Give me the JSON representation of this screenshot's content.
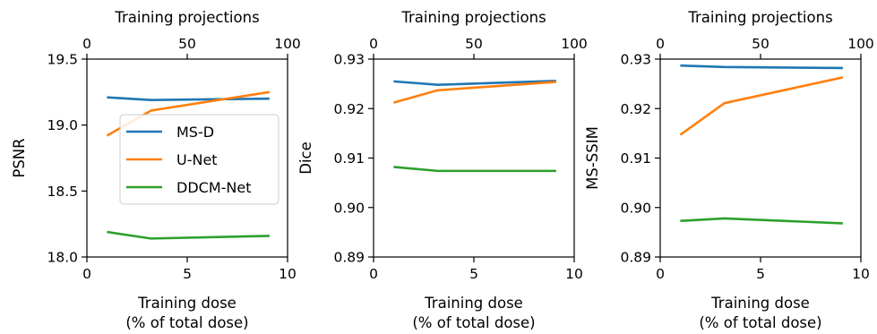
{
  "chart_data": [
    {
      "type": "line",
      "xlabel": "Training dose",
      "xlabel2": "(% of total dose)",
      "top_xlabel": "Training projections",
      "ylabel": "PSNR",
      "xlim": [
        0,
        10
      ],
      "top_xlim": [
        0,
        100
      ],
      "ylim": [
        18.0,
        19.5
      ],
      "xticks": [
        "0",
        "5",
        "10"
      ],
      "top_xticks": [
        "0",
        "50",
        "100"
      ],
      "yticks": [
        "18.0",
        "18.5",
        "19.0",
        "19.5"
      ],
      "x": [
        1.0,
        3.2,
        9.1
      ],
      "grid": false,
      "legend": {
        "position": "center-right",
        "entries": [
          "MS-D",
          "U-Net",
          "DDCM-Net"
        ]
      },
      "series": [
        {
          "name": "MS-D",
          "color": "#1f77b4",
          "values": [
            19.21,
            19.19,
            19.2
          ]
        },
        {
          "name": "U-Net",
          "color": "#ff7f0e",
          "values": [
            18.92,
            19.11,
            19.25
          ]
        },
        {
          "name": "DDCM-Net",
          "color": "#2ca02c",
          "values": [
            18.19,
            18.14,
            18.16
          ]
        }
      ]
    },
    {
      "type": "line",
      "xlabel": "Training dose",
      "xlabel2": "(% of total dose)",
      "top_xlabel": "Training projections",
      "ylabel": "Dice",
      "xlim": [
        0,
        10
      ],
      "top_xlim": [
        0,
        100
      ],
      "ylim": [
        0.89,
        0.93
      ],
      "xticks": [
        "0",
        "5",
        "10"
      ],
      "top_xticks": [
        "0",
        "50",
        "100"
      ],
      "yticks": [
        "0.89",
        "0.90",
        "0.91",
        "0.92",
        "0.93"
      ],
      "x": [
        1.0,
        3.2,
        9.1
      ],
      "grid": false,
      "series": [
        {
          "name": "MS-D",
          "color": "#1f77b4",
          "values": [
            0.9255,
            0.9248,
            0.9256
          ]
        },
        {
          "name": "U-Net",
          "color": "#ff7f0e",
          "values": [
            0.9212,
            0.9237,
            0.9254
          ]
        },
        {
          "name": "DDCM-Net",
          "color": "#2ca02c",
          "values": [
            0.9082,
            0.9074,
            0.9074
          ]
        }
      ]
    },
    {
      "type": "line",
      "xlabel": "Training dose",
      "xlabel2": "(% of total dose)",
      "top_xlabel": "Training projections",
      "ylabel": "MS-SSIM",
      "xlim": [
        0,
        10
      ],
      "top_xlim": [
        0,
        100
      ],
      "ylim": [
        0.89,
        0.93
      ],
      "xticks": [
        "0",
        "5",
        "10"
      ],
      "top_xticks": [
        "0",
        "50",
        "100"
      ],
      "yticks": [
        "0.89",
        "0.90",
        "0.91",
        "0.92",
        "0.93"
      ],
      "x": [
        1.0,
        3.2,
        9.1
      ],
      "grid": false,
      "series": [
        {
          "name": "MS-D",
          "color": "#1f77b4",
          "values": [
            0.9287,
            0.9284,
            0.9282
          ]
        },
        {
          "name": "U-Net",
          "color": "#ff7f0e",
          "values": [
            0.9147,
            0.9211,
            0.9263
          ]
        },
        {
          "name": "DDCM-Net",
          "color": "#2ca02c",
          "values": [
            0.8973,
            0.8978,
            0.8968
          ]
        }
      ]
    }
  ]
}
